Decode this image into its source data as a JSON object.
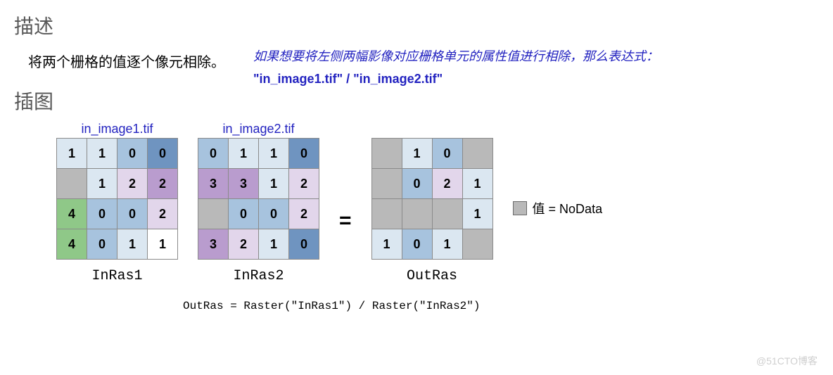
{
  "headings": {
    "desc": "描述",
    "illus": "插图"
  },
  "desc_text": "将两个栅格的值逐个像元相除。",
  "note_text": "如果想要将左侧两幅影像对应栅格单元的属性值进行相除，那么表达式：",
  "expression": "\"in_image1.tif\" / \"in_image2.tif\"",
  "image_labels": {
    "a": "in_image1.tif",
    "b": "in_image2.tif"
  },
  "raster_labels": {
    "a": "InRas1",
    "b": "InRas2",
    "out": "OutRas"
  },
  "equals": "=",
  "code_line": "OutRas = Raster(\"InRas1\") / Raster(\"InRas2\")",
  "legend": {
    "text": "值 = NoData",
    "swatch": "#b9b9b9"
  },
  "watermark": "@51CTO博客",
  "colors": {
    "nodata": "#b9b9b9",
    "white": "#ffffff",
    "lblue": "#dbe7f1",
    "mblue": "#a7c3de",
    "dblue": "#6f94c0",
    "lpurp": "#e2d6eb",
    "mpurp": "#b99cce",
    "green": "#8fc888"
  },
  "grids": {
    "a": [
      [
        {
          "v": "1",
          "c": "lblue"
        },
        {
          "v": "1",
          "c": "lblue"
        },
        {
          "v": "0",
          "c": "mblue"
        },
        {
          "v": "0",
          "c": "dblue"
        }
      ],
      [
        {
          "v": "",
          "c": "nodata"
        },
        {
          "v": "1",
          "c": "lblue"
        },
        {
          "v": "2",
          "c": "lpurp"
        },
        {
          "v": "2",
          "c": "mpurp"
        }
      ],
      [
        {
          "v": "4",
          "c": "green"
        },
        {
          "v": "0",
          "c": "mblue"
        },
        {
          "v": "0",
          "c": "mblue"
        },
        {
          "v": "2",
          "c": "lpurp"
        }
      ],
      [
        {
          "v": "4",
          "c": "green"
        },
        {
          "v": "0",
          "c": "mblue"
        },
        {
          "v": "1",
          "c": "lblue"
        },
        {
          "v": "1",
          "c": "white"
        }
      ]
    ],
    "b": [
      [
        {
          "v": "0",
          "c": "mblue"
        },
        {
          "v": "1",
          "c": "lblue"
        },
        {
          "v": "1",
          "c": "lblue"
        },
        {
          "v": "0",
          "c": "dblue"
        }
      ],
      [
        {
          "v": "3",
          "c": "mpurp"
        },
        {
          "v": "3",
          "c": "mpurp"
        },
        {
          "v": "1",
          "c": "lblue"
        },
        {
          "v": "2",
          "c": "lpurp"
        }
      ],
      [
        {
          "v": "",
          "c": "nodata"
        },
        {
          "v": "0",
          "c": "mblue"
        },
        {
          "v": "0",
          "c": "mblue"
        },
        {
          "v": "2",
          "c": "lpurp"
        }
      ],
      [
        {
          "v": "3",
          "c": "mpurp"
        },
        {
          "v": "2",
          "c": "lpurp"
        },
        {
          "v": "1",
          "c": "lblue"
        },
        {
          "v": "0",
          "c": "dblue"
        }
      ]
    ],
    "out": [
      [
        {
          "v": "",
          "c": "nodata"
        },
        {
          "v": "1",
          "c": "lblue"
        },
        {
          "v": "0",
          "c": "mblue"
        },
        {
          "v": "",
          "c": "nodata"
        }
      ],
      [
        {
          "v": "",
          "c": "nodata"
        },
        {
          "v": "0",
          "c": "mblue"
        },
        {
          "v": "2",
          "c": "lpurp"
        },
        {
          "v": "1",
          "c": "lblue"
        }
      ],
      [
        {
          "v": "",
          "c": "nodata"
        },
        {
          "v": "",
          "c": "nodata"
        },
        {
          "v": "",
          "c": "nodata"
        },
        {
          "v": "1",
          "c": "lblue"
        }
      ],
      [
        {
          "v": "1",
          "c": "lblue"
        },
        {
          "v": "0",
          "c": "mblue"
        },
        {
          "v": "1",
          "c": "lblue"
        },
        {
          "v": "",
          "c": "nodata"
        }
      ]
    ]
  }
}
